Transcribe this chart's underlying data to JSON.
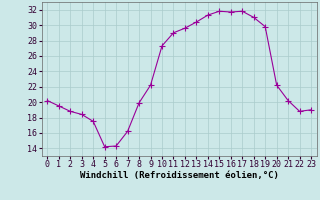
{
  "hours": [
    0,
    1,
    2,
    3,
    4,
    5,
    6,
    7,
    8,
    9,
    10,
    11,
    12,
    13,
    14,
    15,
    16,
    17,
    18,
    19,
    20,
    21,
    22,
    23
  ],
  "values": [
    20.2,
    19.5,
    18.8,
    18.4,
    17.5,
    14.2,
    14.3,
    16.2,
    19.9,
    22.2,
    27.3,
    29.0,
    29.6,
    30.4,
    31.3,
    31.8,
    31.7,
    31.8,
    31.0,
    29.8,
    22.2,
    20.2,
    18.8,
    19.0
  ],
  "line_color": "#990099",
  "marker_color": "#990099",
  "bg_color": "#cce8e8",
  "grid_color": "#aacccc",
  "xlabel": "Windchill (Refroidissement éolien,°C)",
  "ylim": [
    13,
    33
  ],
  "xlim_min": -0.5,
  "xlim_max": 23.5,
  "yticks": [
    14,
    16,
    18,
    20,
    22,
    24,
    26,
    28,
    30,
    32
  ],
  "xticks": [
    0,
    1,
    2,
    3,
    4,
    5,
    6,
    7,
    8,
    9,
    10,
    11,
    12,
    13,
    14,
    15,
    16,
    17,
    18,
    19,
    20,
    21,
    22,
    23
  ],
  "xlabel_fontsize": 6.5,
  "tick_fontsize": 6,
  "marker_size": 4,
  "line_width": 0.8
}
